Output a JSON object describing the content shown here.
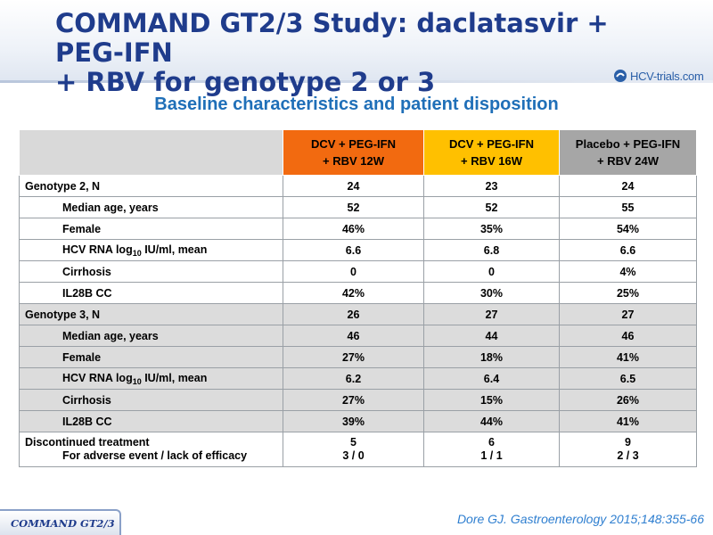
{
  "title": {
    "line1": "COMMAND GT2/3 Study: daclatasvir + PEG-IFN",
    "line2": "+ RBV for genotype 2 or 3"
  },
  "logo": {
    "text": "HCV-trials.com"
  },
  "subtitle": "Baseline characteristics and patient disposition",
  "table": {
    "headers": [
      {
        "line1": "DCV + PEG-IFN",
        "line2": "+ RBV 12W",
        "color": "#f26a10"
      },
      {
        "line1": "DCV + PEG-IFN",
        "line2": "+ RBV 16W",
        "color": "#ffc000"
      },
      {
        "line1": "Placebo + PEG-IFN",
        "line2": "+ RBV 24W",
        "color": "#a6a6a6"
      }
    ],
    "genotype2": {
      "rows": [
        {
          "label": "Genotype 2, N",
          "values": [
            "24",
            "23",
            "24"
          ]
        },
        {
          "label": "Median age, years",
          "values": [
            "52",
            "52",
            "55"
          ]
        },
        {
          "label": "Female",
          "values": [
            "46%",
            "35%",
            "54%"
          ]
        },
        {
          "label_pre": "HCV RNA log",
          "label_sub": "10",
          "label_post": " IU/ml, mean",
          "values": [
            "6.6",
            "6.8",
            "6.6"
          ]
        },
        {
          "label": "Cirrhosis",
          "values": [
            "0",
            "0",
            "4%"
          ]
        },
        {
          "label": "IL28B CC",
          "values": [
            "42%",
            "30%",
            "25%"
          ]
        }
      ]
    },
    "genotype3": {
      "rows": [
        {
          "label": "Genotype 3, N",
          "values": [
            "26",
            "27",
            "27"
          ]
        },
        {
          "label": "Median age, years",
          "values": [
            "46",
            "44",
            "46"
          ]
        },
        {
          "label": "Female",
          "values": [
            "27%",
            "18%",
            "41%"
          ]
        },
        {
          "label_pre": "HCV RNA log",
          "label_sub": "10",
          "label_post": " IU/ml, mean",
          "values": [
            "6.2",
            "6.4",
            "6.5"
          ]
        },
        {
          "label": "Cirrhosis",
          "values": [
            "27%",
            "15%",
            "26%"
          ]
        },
        {
          "label": "IL28B CC",
          "values": [
            "39%",
            "44%",
            "41%"
          ]
        }
      ]
    },
    "discontinued": {
      "label": "Discontinued treatment",
      "sublabel": "For adverse event / lack of efficacy",
      "values": [
        "5",
        "6",
        "9"
      ],
      "subvalues": [
        "3 / 0",
        "1 / 1",
        "2 / 3"
      ]
    }
  },
  "footer": {
    "tab": "COMMAND GT2/3",
    "citation": "Dore GJ. Gastroenterology 2015;148:355-66"
  }
}
